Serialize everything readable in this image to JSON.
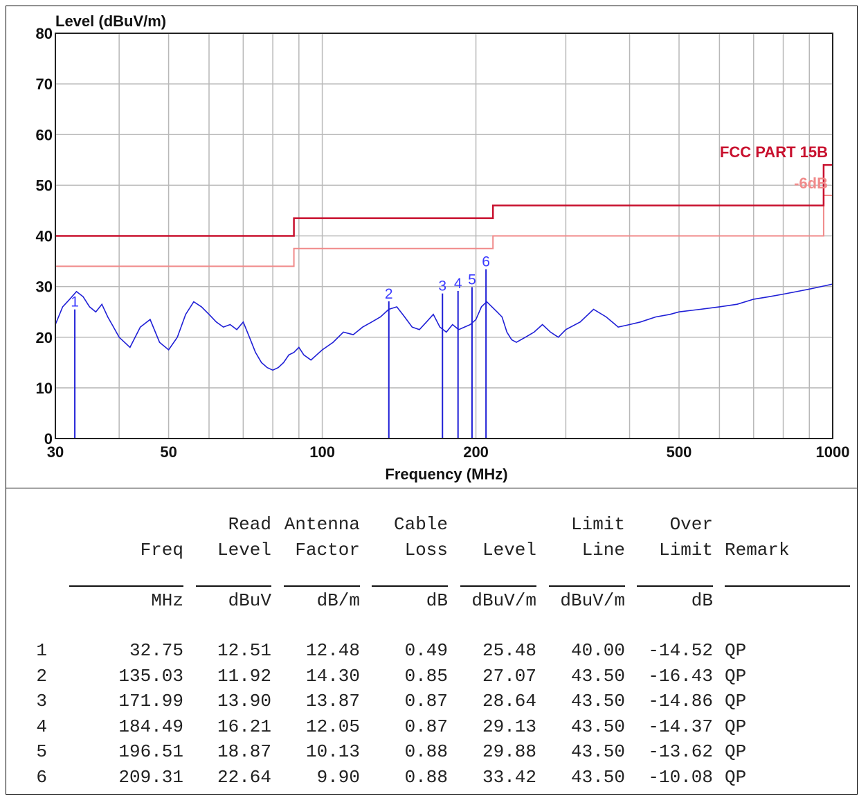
{
  "chart_data": {
    "type": "line",
    "ylabel": "Level (dBuV/m)",
    "xlabel": "Frequency (MHz)",
    "xscale": "log",
    "xlim": [
      30,
      1000
    ],
    "ylim": [
      0,
      80
    ],
    "yticks": [
      0,
      10,
      20,
      30,
      40,
      50,
      60,
      70,
      80
    ],
    "xticks": [
      30,
      50,
      100,
      200,
      500,
      1000
    ],
    "grid": true,
    "colors": {
      "trace": "#1f1fd6",
      "limit": "#c8102e",
      "margin": "#f08a8a"
    },
    "limit_label": "FCC PART 15B",
    "margin_label": "-6dB",
    "limit_line": [
      {
        "x": 30,
        "y": 40
      },
      {
        "x": 88,
        "y": 40
      },
      {
        "x": 88,
        "y": 43.5
      },
      {
        "x": 216,
        "y": 43.5
      },
      {
        "x": 216,
        "y": 46
      },
      {
        "x": 960,
        "y": 46
      },
      {
        "x": 960,
        "y": 54
      },
      {
        "x": 1000,
        "y": 54
      }
    ],
    "margin_line": [
      {
        "x": 30,
        "y": 34
      },
      {
        "x": 88,
        "y": 34
      },
      {
        "x": 88,
        "y": 37.5
      },
      {
        "x": 216,
        "y": 37.5
      },
      {
        "x": 216,
        "y": 40
      },
      {
        "x": 960,
        "y": 40
      },
      {
        "x": 960,
        "y": 48
      },
      {
        "x": 1000,
        "y": 48
      }
    ],
    "series": [
      {
        "x": [
          30,
          31,
          32,
          33,
          34,
          35,
          36,
          37,
          38,
          39,
          40,
          42,
          44,
          46,
          48,
          50,
          52,
          54,
          56,
          58,
          60,
          62,
          64,
          66,
          68,
          70,
          72,
          74,
          76,
          78,
          80,
          82,
          84,
          86,
          88,
          90,
          92,
          95,
          100,
          105,
          110,
          115,
          120,
          125,
          130,
          135,
          140,
          145,
          150,
          155,
          160,
          165,
          170,
          175,
          180,
          185,
          190,
          195,
          200,
          205,
          210,
          215,
          220,
          225,
          230,
          235,
          240,
          250,
          260,
          270,
          280,
          290,
          300,
          320,
          340,
          360,
          380,
          400,
          420,
          450,
          480,
          500,
          550,
          600,
          650,
          700,
          750,
          800,
          850,
          900,
          950,
          1000
        ],
        "y": [
          22.5,
          26,
          27.5,
          29,
          28,
          26,
          25,
          26.5,
          24,
          22,
          20,
          18,
          22,
          23.5,
          19,
          17.5,
          20,
          24.5,
          27,
          26,
          24.5,
          23,
          22,
          22.5,
          21.5,
          23,
          20,
          17,
          15,
          14,
          13.5,
          14,
          15,
          16.5,
          17,
          18,
          16.5,
          15.5,
          17.5,
          19,
          21,
          20.5,
          22,
          23,
          24,
          25.5,
          26,
          24,
          22,
          21.5,
          23,
          24.5,
          22,
          21,
          22.5,
          21.5,
          22,
          22.5,
          23.5,
          26,
          27,
          26,
          25,
          24,
          21,
          19.5,
          19,
          20,
          21,
          22.5,
          21,
          20,
          21.5,
          23,
          25.5,
          24,
          22,
          22.5,
          23,
          24,
          24.5,
          25,
          25.5,
          26,
          26.5,
          27.5,
          28,
          28.5,
          29,
          29.5,
          30,
          30.5
        ]
      }
    ],
    "markers": [
      {
        "label": "1",
        "x": 32.75,
        "y": 25.48
      },
      {
        "label": "2",
        "x": 135.03,
        "y": 27.07
      },
      {
        "label": "3",
        "x": 171.99,
        "y": 28.64
      },
      {
        "label": "4",
        "x": 184.49,
        "y": 29.13
      },
      {
        "label": "5",
        "x": 196.51,
        "y": 29.88
      },
      {
        "label": "6",
        "x": 209.31,
        "y": 33.42
      }
    ]
  },
  "table": {
    "header_top": [
      "",
      "",
      "Read",
      "Antenna",
      "Cable",
      "",
      "Limit",
      "Over",
      ""
    ],
    "header_mid": [
      "",
      "Freq",
      "Level",
      "Factor",
      "Loss",
      "Level",
      "Line",
      "Limit",
      "Remark"
    ],
    "units": [
      "",
      "MHz",
      "dBuV",
      "dB/m",
      "dB",
      "dBuV/m",
      "dBuV/m",
      "dB",
      ""
    ],
    "rows": [
      [
        "1",
        "32.75",
        "12.51",
        "12.48",
        "0.49",
        "25.48",
        "40.00",
        "-14.52",
        "QP"
      ],
      [
        "2",
        "135.03",
        "11.92",
        "14.30",
        "0.85",
        "27.07",
        "43.50",
        "-16.43",
        "QP"
      ],
      [
        "3",
        "171.99",
        "13.90",
        "13.87",
        "0.87",
        "28.64",
        "43.50",
        "-14.86",
        "QP"
      ],
      [
        "4",
        "184.49",
        "16.21",
        "12.05",
        "0.87",
        "29.13",
        "43.50",
        "-14.37",
        "QP"
      ],
      [
        "5",
        "196.51",
        "18.87",
        "10.13",
        "0.88",
        "29.88",
        "43.50",
        "-13.62",
        "QP"
      ],
      [
        "6",
        "209.31",
        "22.64",
        "9.90",
        "0.88",
        "33.42",
        "43.50",
        "-10.08",
        "QP"
      ]
    ]
  }
}
